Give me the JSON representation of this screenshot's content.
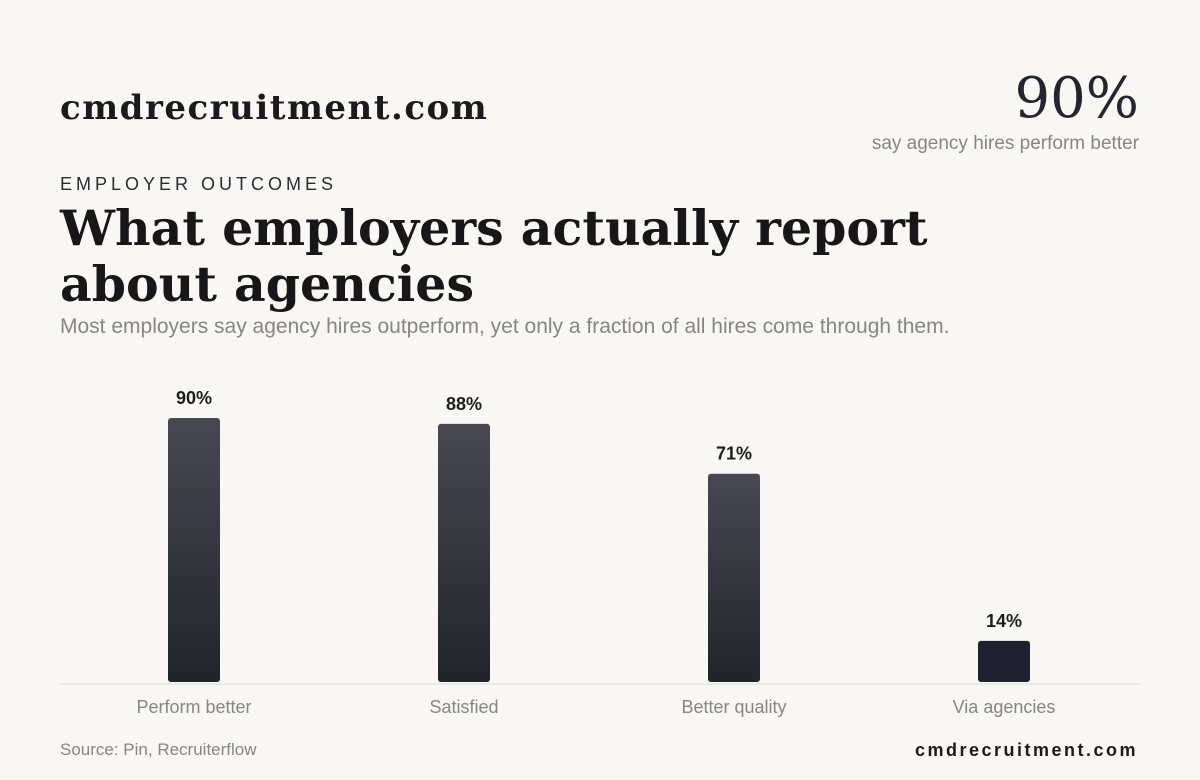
{
  "header": {
    "brand": "cmdrecruitment.com",
    "stat_value": "90%",
    "stat_caption": "say agency hires perform better"
  },
  "eyebrow": "EMPLOYER OUTCOMES",
  "title": "What employers actually report about agencies",
  "subtitle": "Most employers say agency hires outperform, yet only a fraction of all hires come through them.",
  "footer": {
    "source": "Source: Pin, Recruiterflow",
    "brand": "cmdrecruitment.com"
  },
  "colors": {
    "background": "#f8f7f4",
    "bar_top": "#474851",
    "bar_bottom": "#22242c",
    "bar_highlight": "#1f2130",
    "muted_text": "#8a8580",
    "axis": "#dedbd6"
  },
  "chart_data": {
    "type": "bar",
    "categories": [
      "Perform better",
      "Satisfied",
      "Better quality",
      "Via agencies"
    ],
    "values": [
      90,
      88,
      71,
      14
    ],
    "value_labels": [
      "90%",
      "88%",
      "71%",
      "14%"
    ],
    "unit": "%",
    "ylim": [
      0,
      90
    ],
    "grid": false,
    "legend": "none"
  }
}
